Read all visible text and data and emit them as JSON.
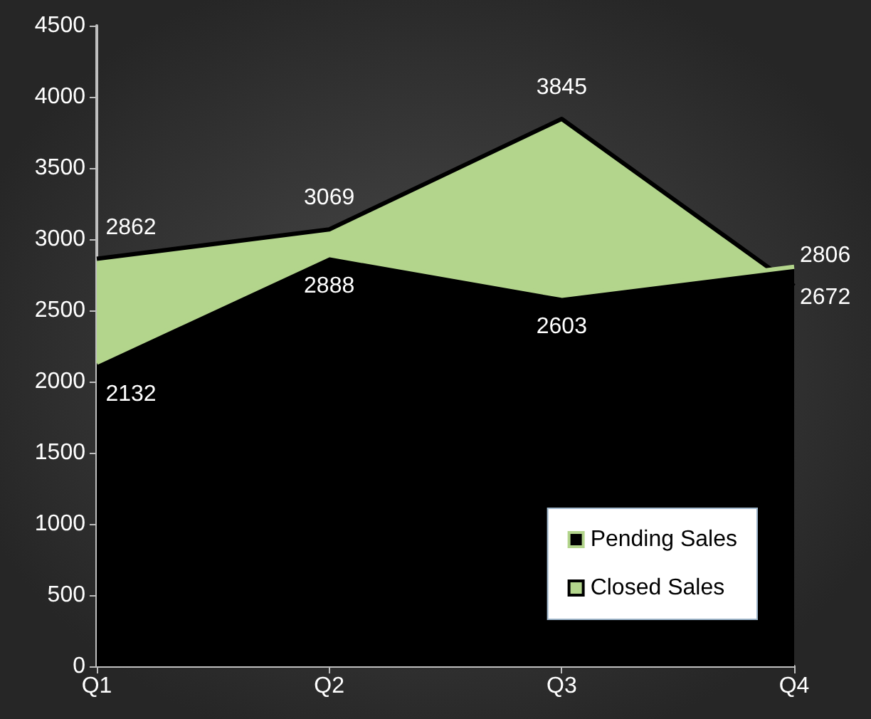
{
  "chart_data": {
    "type": "area",
    "categories": [
      "Q1",
      "Q2",
      "Q3",
      "Q4"
    ],
    "series": [
      {
        "name": "Pending Sales",
        "color": "#000000",
        "values": [
          2132,
          2888,
          2603,
          2806
        ]
      },
      {
        "name": "Closed Sales",
        "color": "#b3d58c",
        "values": [
          2862,
          3069,
          3845,
          2672
        ]
      }
    ],
    "ylim": [
      0,
      4500
    ],
    "yticks": [
      0,
      500,
      1000,
      1500,
      2000,
      2500,
      3000,
      3500,
      4000,
      4500
    ],
    "grid": false,
    "legend": "bottom right",
    "data_labels": true,
    "marker": "none"
  }
}
